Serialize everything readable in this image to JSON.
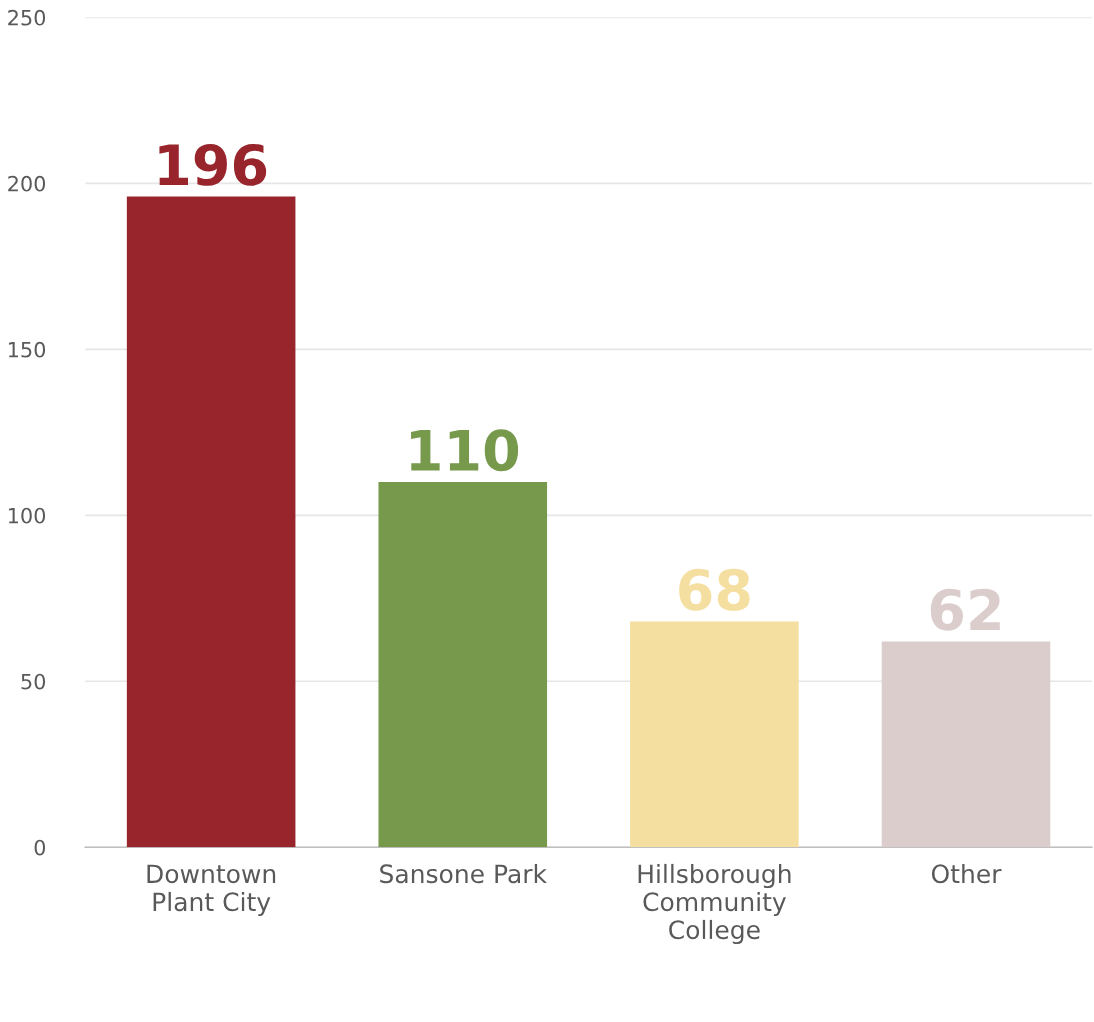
{
  "chart_data": {
    "type": "bar",
    "categories": [
      "Downtown\nPlant City",
      "Sansone Park",
      "Hillsborough\nCommunity\nCollege",
      "Other"
    ],
    "values": [
      196,
      110,
      68,
      62
    ],
    "colors": [
      "#98252b",
      "#76994c",
      "#f5dfa0",
      "#dccdcd"
    ],
    "ylim": [
      0,
      250
    ],
    "yticks": [
      0,
      50,
      100,
      150,
      200,
      250
    ],
    "grid": "y",
    "data_labels": true,
    "legend": false
  }
}
